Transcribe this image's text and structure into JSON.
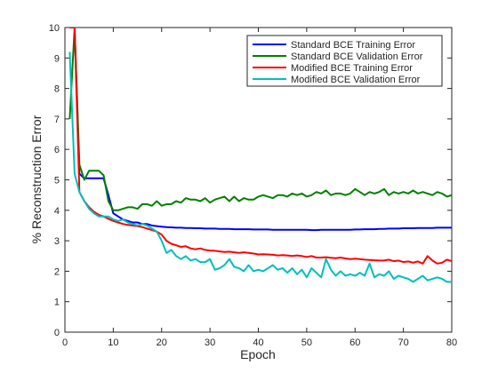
{
  "chart_data": {
    "type": "line",
    "xlabel": "Epoch",
    "ylabel": "% Reconstruction Error",
    "xlim": [
      0,
      80
    ],
    "ylim": [
      0,
      10
    ],
    "xticks": [
      0,
      10,
      20,
      30,
      40,
      50,
      60,
      70,
      80
    ],
    "yticks": [
      0,
      1,
      2,
      3,
      4,
      5,
      6,
      7,
      8,
      9,
      10
    ],
    "grid": false,
    "legend_position": "top-right",
    "x": [
      1,
      2,
      3,
      4,
      5,
      6,
      7,
      8,
      9,
      10,
      11,
      12,
      13,
      14,
      15,
      16,
      17,
      18,
      19,
      20,
      21,
      22,
      23,
      24,
      25,
      26,
      27,
      28,
      29,
      30,
      31,
      32,
      33,
      34,
      35,
      36,
      37,
      38,
      39,
      40,
      41,
      42,
      43,
      44,
      45,
      46,
      47,
      48,
      49,
      50,
      51,
      52,
      53,
      54,
      55,
      56,
      57,
      58,
      59,
      60,
      61,
      62,
      63,
      64,
      65,
      66,
      67,
      68,
      69,
      70,
      71,
      72,
      73,
      74,
      75,
      76,
      77,
      78,
      79,
      80
    ],
    "series": [
      {
        "name": "Standard BCE Training Error",
        "color": "#0000ff",
        "values": [
          10.0,
          10.0,
          5.2,
          5.05,
          5.05,
          5.05,
          5.05,
          5.05,
          4.5,
          3.9,
          3.8,
          3.7,
          3.65,
          3.6,
          3.6,
          3.55,
          3.55,
          3.5,
          3.48,
          3.46,
          3.45,
          3.44,
          3.43,
          3.43,
          3.42,
          3.42,
          3.41,
          3.41,
          3.4,
          3.4,
          3.4,
          3.39,
          3.39,
          3.39,
          3.38,
          3.38,
          3.38,
          3.38,
          3.37,
          3.37,
          3.37,
          3.37,
          3.36,
          3.36,
          3.36,
          3.36,
          3.36,
          3.36,
          3.36,
          3.36,
          3.35,
          3.35,
          3.36,
          3.36,
          3.36,
          3.36,
          3.36,
          3.36,
          3.36,
          3.37,
          3.37,
          3.38,
          3.38,
          3.38,
          3.39,
          3.39,
          3.4,
          3.4,
          3.4,
          3.41,
          3.41,
          3.41,
          3.42,
          3.42,
          3.42,
          3.42,
          3.43,
          3.43,
          3.43,
          3.43
        ]
      },
      {
        "name": "Standard BCE Validation Error",
        "color": "#008000",
        "values": [
          7.0,
          10.0,
          5.5,
          5.0,
          5.3,
          5.3,
          5.3,
          5.15,
          4.3,
          4.0,
          4.0,
          4.05,
          4.1,
          4.1,
          4.05,
          4.2,
          4.2,
          4.15,
          4.3,
          4.15,
          4.2,
          4.2,
          4.3,
          4.25,
          4.4,
          4.35,
          4.35,
          4.3,
          4.4,
          4.25,
          4.35,
          4.4,
          4.45,
          4.3,
          4.45,
          4.3,
          4.4,
          4.35,
          4.35,
          4.45,
          4.5,
          4.45,
          4.4,
          4.5,
          4.5,
          4.45,
          4.55,
          4.5,
          4.55,
          4.45,
          4.5,
          4.6,
          4.55,
          4.65,
          4.5,
          4.55,
          4.55,
          4.5,
          4.55,
          4.7,
          4.6,
          4.5,
          4.6,
          4.55,
          4.6,
          4.7,
          4.5,
          4.6,
          4.55,
          4.6,
          4.55,
          4.65,
          4.55,
          4.6,
          4.55,
          4.5,
          4.6,
          4.55,
          4.45,
          4.5
        ]
      },
      {
        "name": "Modified BCE Training Error",
        "color": "#ff0000",
        "values": [
          10.0,
          10.0,
          4.6,
          4.3,
          4.1,
          3.95,
          3.85,
          3.8,
          3.72,
          3.65,
          3.6,
          3.55,
          3.52,
          3.5,
          3.48,
          3.45,
          3.4,
          3.35,
          3.3,
          3.2,
          3.0,
          2.9,
          2.85,
          2.8,
          2.82,
          2.75,
          2.72,
          2.75,
          2.7,
          2.68,
          2.67,
          2.65,
          2.63,
          2.64,
          2.62,
          2.6,
          2.62,
          2.6,
          2.58,
          2.55,
          2.56,
          2.55,
          2.54,
          2.52,
          2.53,
          2.52,
          2.5,
          2.52,
          2.5,
          2.47,
          2.5,
          2.45,
          2.45,
          2.46,
          2.44,
          2.43,
          2.45,
          2.42,
          2.4,
          2.41,
          2.4,
          2.38,
          2.37,
          2.36,
          2.35,
          2.35,
          2.38,
          2.33,
          2.35,
          2.3,
          2.32,
          2.28,
          2.32,
          2.25,
          2.5,
          2.35,
          2.25,
          2.28,
          2.38,
          2.33
        ]
      },
      {
        "name": "Modified BCE Validation Error",
        "color": "#00bfbf",
        "values": [
          9.2,
          5.2,
          4.6,
          4.3,
          4.05,
          3.9,
          3.8,
          3.8,
          3.8,
          3.7,
          3.65,
          3.7,
          3.6,
          3.55,
          3.5,
          3.55,
          3.5,
          3.4,
          3.3,
          3.0,
          2.6,
          2.7,
          2.5,
          2.4,
          2.5,
          2.35,
          2.4,
          2.3,
          2.3,
          2.4,
          2.05,
          2.1,
          2.2,
          2.4,
          2.15,
          2.1,
          2.0,
          2.2,
          2.0,
          2.05,
          2.0,
          2.1,
          2.2,
          2.05,
          2.1,
          1.95,
          2.1,
          1.9,
          2.05,
          1.8,
          2.1,
          1.95,
          1.8,
          2.4,
          2.05,
          1.85,
          2.0,
          1.85,
          1.9,
          1.85,
          1.95,
          1.85,
          2.25,
          1.8,
          1.9,
          1.85,
          2.0,
          1.75,
          1.85,
          1.8,
          1.75,
          1.65,
          1.75,
          1.85,
          1.7,
          1.75,
          1.8,
          1.75,
          1.65,
          1.65
        ]
      }
    ]
  }
}
